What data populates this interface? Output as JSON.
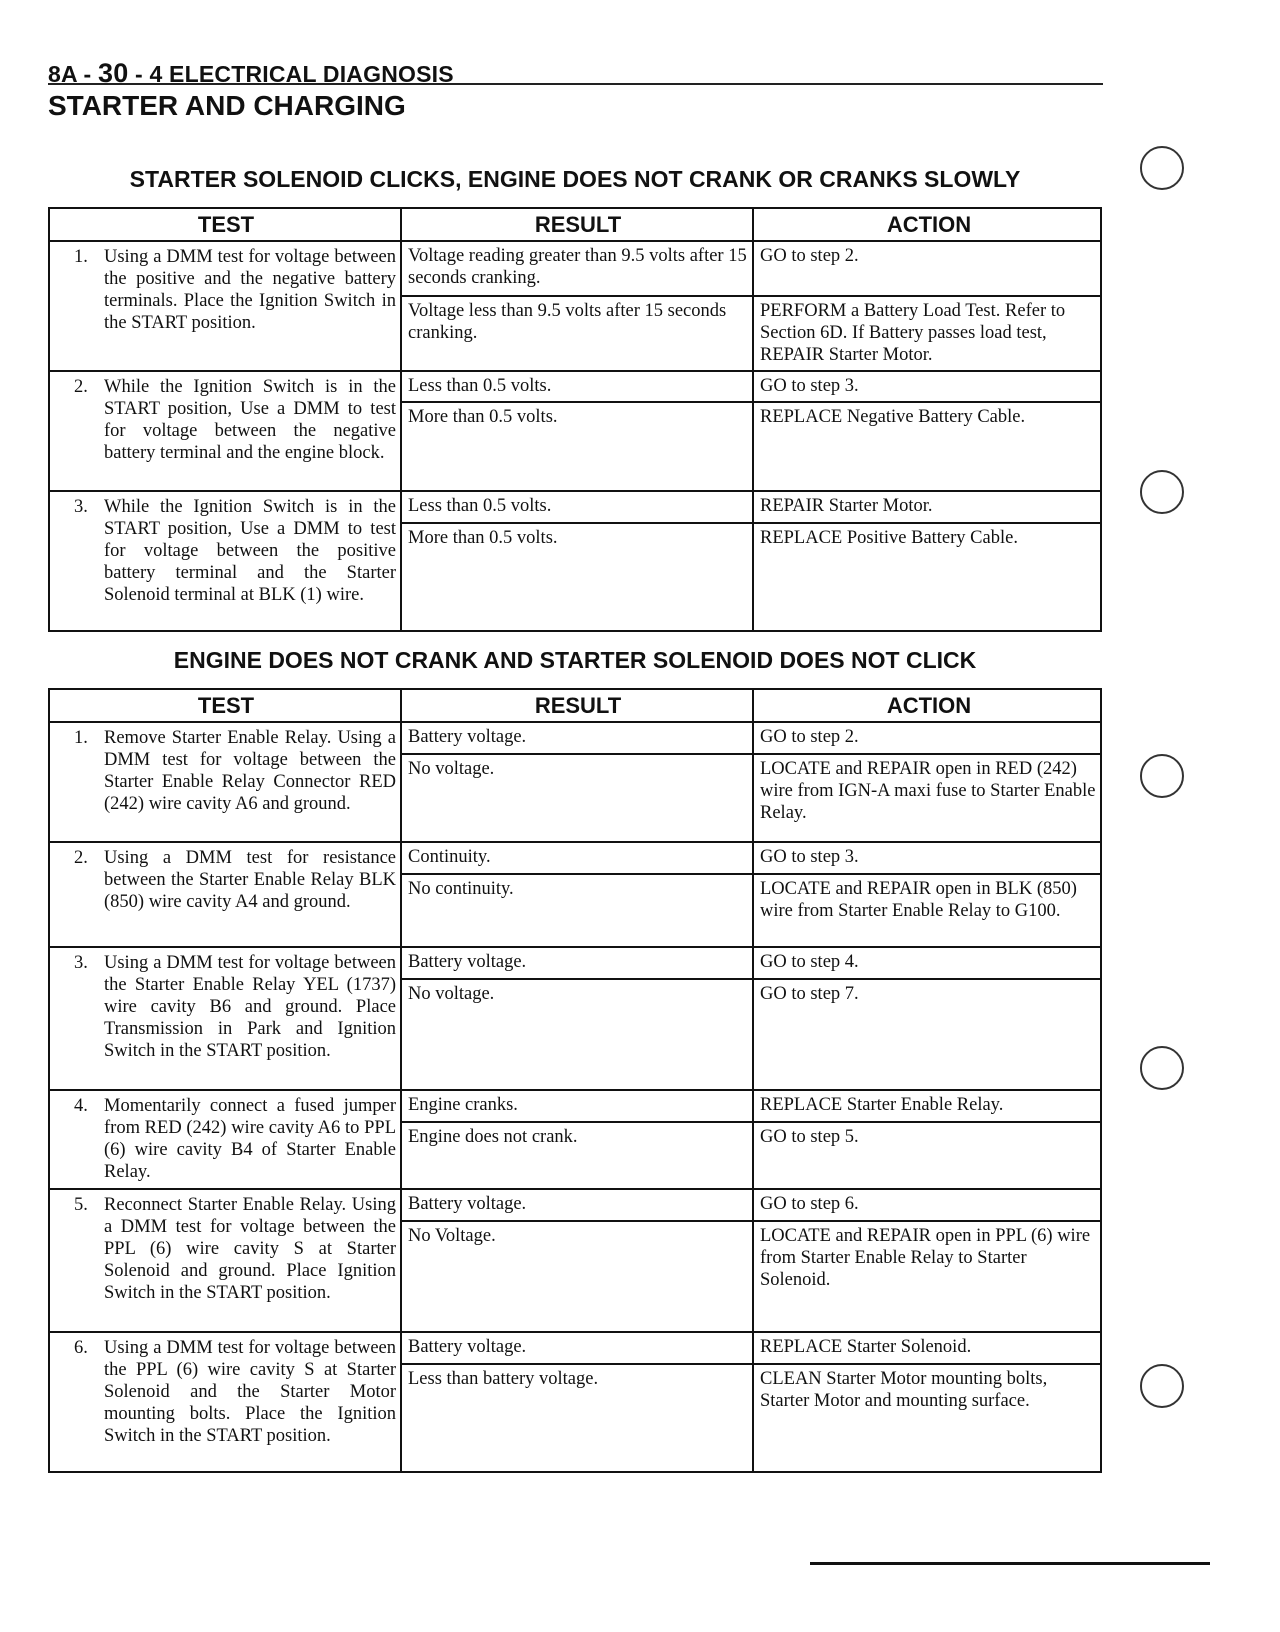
{
  "header": {
    "prefix": "8A - ",
    "page_num": "30",
    "suffix": " - 4  ELECTRICAL DIAGNOSIS",
    "section": "STARTER AND CHARGING"
  },
  "tables": [
    {
      "title": "STARTER SOLENOID CLICKS, ENGINE DOES NOT CRANK OR CRANKS SLOWLY",
      "columns": [
        "TEST",
        "RESULT",
        "ACTION"
      ],
      "rows": [
        {
          "num": "1.",
          "test": "Using a DMM test for voltage between the positive and the negative battery terminals. Place the Ignition Switch in the START position.",
          "outcomes": [
            {
              "result": "Voltage reading greater than 9.5 volts after 15 seconds cranking.",
              "action": "GO to step 2."
            },
            {
              "result": "Voltage less than 9.5 volts after 15 seconds cranking.",
              "action": "PERFORM a Battery Load Test. Refer to Section 6D. If Battery passes load test, REPAIR Starter Motor."
            }
          ]
        },
        {
          "num": "2.",
          "test": "While the Ignition Switch is in the START position, Use a DMM to test for voltage between the negative battery terminal and the engine block.",
          "outcomes": [
            {
              "result": "Less than 0.5 volts.",
              "action": "GO to step 3."
            },
            {
              "result": "More than 0.5 volts.",
              "action": "REPLACE Negative Battery Cable."
            }
          ]
        },
        {
          "num": "3.",
          "test": "While the Ignition Switch is in the START position, Use a DMM to test for voltage between the positive battery terminal and the Starter Solenoid terminal at BLK (1) wire.",
          "outcomes": [
            {
              "result": "Less than 0.5 volts.",
              "action": "REPAIR Starter Motor."
            },
            {
              "result": "More than 0.5 volts.",
              "action": "REPLACE Positive Battery Cable."
            }
          ]
        }
      ]
    },
    {
      "title": "ENGINE DOES NOT CRANK AND STARTER SOLENOID DOES NOT CLICK",
      "columns": [
        "TEST",
        "RESULT",
        "ACTION"
      ],
      "rows": [
        {
          "num": "1.",
          "test": "Remove Starter Enable Relay. Using a DMM test for voltage between the Starter Enable Relay Connector RED (242) wire cavity A6 and ground.",
          "outcomes": [
            {
              "result": "Battery voltage.",
              "action": "GO to step 2."
            },
            {
              "result": "No voltage.",
              "action": "LOCATE and REPAIR open in RED (242) wire from IGN-A maxi fuse to Starter Enable Relay."
            }
          ]
        },
        {
          "num": "2.",
          "test": "Using a DMM test for resistance between the Starter Enable Relay BLK (850) wire cavity A4 and ground.",
          "outcomes": [
            {
              "result": "Continuity.",
              "action": "GO to step 3."
            },
            {
              "result": "No continuity.",
              "action": "LOCATE and REPAIR open in BLK (850) wire from Starter Enable Relay to G100."
            }
          ]
        },
        {
          "num": "3.",
          "test": "Using a DMM test for voltage between the Starter Enable Relay YEL (1737) wire cavity B6 and ground. Place Transmission in Park and Ignition Switch in the START position.",
          "outcomes": [
            {
              "result": "Battery voltage.",
              "action": "GO to step 4."
            },
            {
              "result": "No voltage.",
              "action": "GO to step 7."
            }
          ]
        },
        {
          "num": "4.",
          "test": "Momentarily connect a fused jumper from RED (242) wire cavity A6 to PPL (6) wire cavity B4 of Starter Enable Relay.",
          "outcomes": [
            {
              "result": "Engine cranks.",
              "action": "REPLACE Starter Enable Relay."
            },
            {
              "result": "Engine does not crank.",
              "action": "GO to step 5."
            }
          ]
        },
        {
          "num": "5.",
          "test": "Reconnect Starter Enable Relay. Using a DMM test for voltage between the PPL (6) wire cavity S at Starter Solenoid and ground. Place Ignition Switch in the START position.",
          "outcomes": [
            {
              "result": "Battery voltage.",
              "action": "GO to step 6."
            },
            {
              "result": "No Voltage.",
              "action": "LOCATE and REPAIR open in PPL (6) wire from Starter Enable Relay to Starter Solenoid."
            }
          ]
        },
        {
          "num": "6.",
          "test": "Using a DMM test for voltage between the PPL (6) wire cavity S at Starter Solenoid and the Starter Motor mounting bolts. Place the Ignition Switch in the START position.",
          "outcomes": [
            {
              "result": "Battery voltage.",
              "action": "REPLACE Starter Solenoid."
            },
            {
              "result": "Less than battery voltage.",
              "action": "CLEAN Starter Motor mounting bolts, Starter Motor and mounting surface."
            }
          ]
        }
      ]
    }
  ]
}
